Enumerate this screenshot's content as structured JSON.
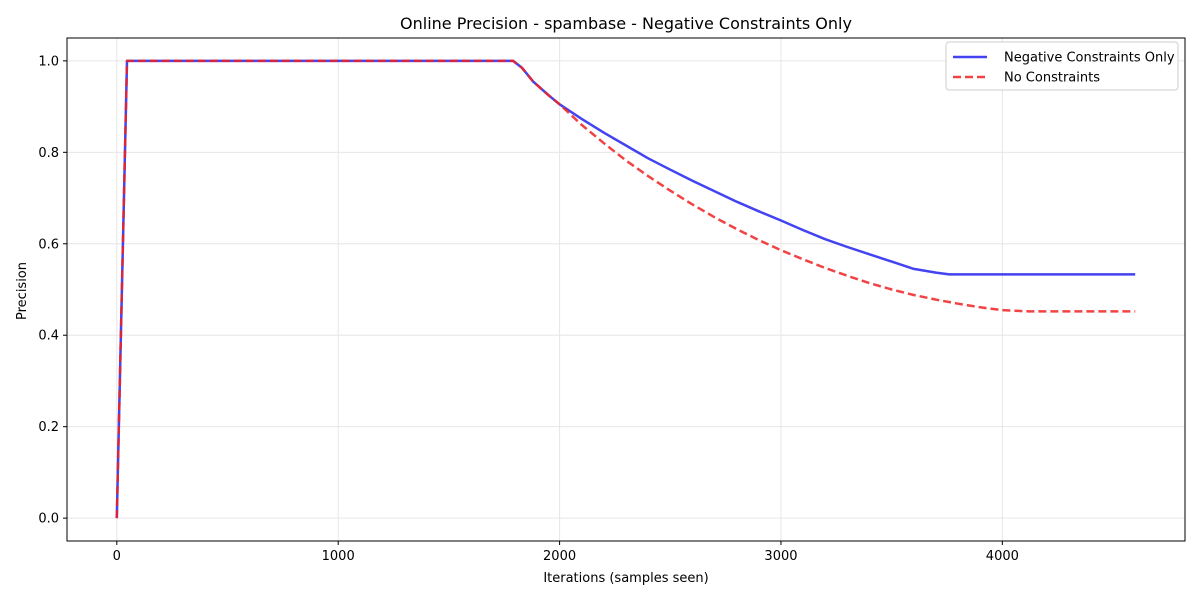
{
  "chart_data": {
    "type": "line",
    "title": "Online Precision - spambase - Negative Constraints Only",
    "xlabel": "Iterations (samples seen)",
    "ylabel": "Precision",
    "xlim": [
      -225,
      4825
    ],
    "ylim": [
      -0.05,
      1.05
    ],
    "xticks": [
      0,
      1000,
      2000,
      3000,
      4000
    ],
    "xtick_labels": [
      "0",
      "1000",
      "2000",
      "3000",
      "4000"
    ],
    "yticks": [
      0.0,
      0.2,
      0.4,
      0.6,
      0.8,
      1.0
    ],
    "ytick_labels": [
      "0.0",
      "0.2",
      "0.4",
      "0.6",
      "0.8",
      "1.0"
    ],
    "grid": true,
    "legend_position": "top-right",
    "series": [
      {
        "name": "Negative Constraints Only",
        "color": "#2222ee",
        "style": "solid",
        "x": [
          0,
          46,
          100,
          500,
          1000,
          1500,
          1790,
          1830,
          1880,
          1950,
          2000,
          2100,
          2200,
          2300,
          2400,
          2500,
          2600,
          2700,
          2800,
          2900,
          3000,
          3100,
          3200,
          3300,
          3400,
          3500,
          3600,
          3700,
          3760,
          3800,
          4000,
          4200,
          4400,
          4600
        ],
        "y": [
          0.0,
          1.0,
          1.0,
          1.0,
          1.0,
          1.0,
          1.0,
          0.985,
          0.955,
          0.925,
          0.905,
          0.873,
          0.843,
          0.815,
          0.787,
          0.762,
          0.738,
          0.715,
          0.692,
          0.671,
          0.651,
          0.63,
          0.61,
          0.593,
          0.577,
          0.561,
          0.545,
          0.537,
          0.533,
          0.533,
          0.533,
          0.533,
          0.533,
          0.533
        ]
      },
      {
        "name": "No Constraints",
        "color": "#ee2222",
        "style": "dashed",
        "x": [
          0,
          46,
          100,
          500,
          1000,
          1500,
          1790,
          1830,
          1880,
          1950,
          2000,
          2100,
          2200,
          2300,
          2400,
          2500,
          2600,
          2700,
          2800,
          2900,
          3000,
          3100,
          3200,
          3300,
          3400,
          3500,
          3600,
          3700,
          3800,
          3900,
          4000,
          4120,
          4300,
          4600
        ],
        "y": [
          0.0,
          1.0,
          1.0,
          1.0,
          1.0,
          1.0,
          1.0,
          0.985,
          0.955,
          0.925,
          0.905,
          0.86,
          0.82,
          0.782,
          0.748,
          0.716,
          0.686,
          0.658,
          0.632,
          0.608,
          0.586,
          0.566,
          0.547,
          0.53,
          0.514,
          0.5,
          0.488,
          0.478,
          0.469,
          0.461,
          0.455,
          0.452,
          0.452,
          0.452
        ]
      }
    ]
  }
}
